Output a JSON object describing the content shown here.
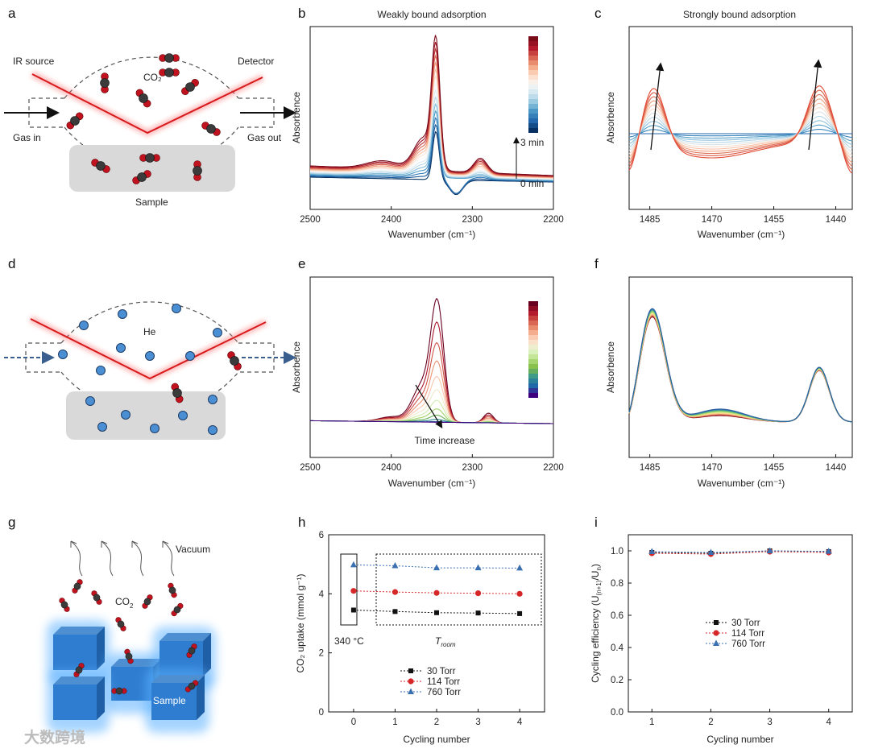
{
  "figure": {
    "panel_labels": [
      "a",
      "b",
      "c",
      "d",
      "e",
      "f",
      "g",
      "h",
      "i"
    ],
    "watermark": "大数跨境"
  },
  "panel_a": {
    "ir_source": "IR source",
    "detector": "Detector",
    "co2_label": "CO₂",
    "gas_in": "Gas in",
    "gas_out": "Gas out",
    "sample": "Sample"
  },
  "panel_d": {
    "he_label": "He"
  },
  "panel_g": {
    "vacuum": "Vacuum",
    "co2_label": "CO",
    "co2_sub": "2",
    "sample": "Sample"
  },
  "chart_data": [
    {
      "id": "b",
      "type": "line",
      "title": "Weakly bound adsorption",
      "xlabel": "Wavenumber (cm⁻¹)",
      "ylabel": "Absorbence",
      "xlim": [
        2500,
        2200
      ],
      "xticks": [
        "2500",
        "2400",
        "2300",
        "2200"
      ],
      "colorbar": {
        "top": "3 min",
        "bottom": "0 min",
        "colors": [
          "#7a0c1a",
          "#b2182b",
          "#d6604d",
          "#f4a582",
          "#fddbc7",
          "#f7f7f7",
          "#d1e5f0",
          "#92c5de",
          "#4393c3",
          "#2166ac",
          "#053061"
        ]
      },
      "series_count": 15
    },
    {
      "id": "c",
      "type": "line",
      "title": "Strongly bound adsorption",
      "xlabel": "Wavenumber (cm⁻¹)",
      "ylabel": "Absorbence",
      "xlim": [
        1490,
        1436
      ],
      "xticks": [
        "1485",
        "1470",
        "1455",
        "1440"
      ],
      "series_count": 12
    },
    {
      "id": "e",
      "type": "line",
      "xlabel": "Wavenumber (cm⁻¹)",
      "ylabel": "Absorbence",
      "xlim": [
        2500,
        2200
      ],
      "xticks": [
        "2500",
        "2400",
        "2300",
        "2200"
      ],
      "annotation": "Time increase",
      "colorbar": {
        "colors": [
          "#67001f",
          "#b2182b",
          "#d6604d",
          "#f4a582",
          "#fddbc7",
          "#e6f5d0",
          "#b8e186",
          "#7fbc41",
          "#35978f",
          "#2166ac",
          "#3f007d"
        ]
      }
    },
    {
      "id": "f",
      "type": "line",
      "xlabel": "Wavenumber (cm⁻¹)",
      "ylabel": "Absorbence",
      "xlim": [
        1490,
        1436
      ],
      "xticks": [
        "1485",
        "1470",
        "1455",
        "1440"
      ]
    },
    {
      "id": "h",
      "type": "scatter",
      "xlabel": "Cycling number",
      "ylabel": "CO₂ uptake (mmol g⁻¹)",
      "xlim": [
        -0.6,
        4.6
      ],
      "ylim": [
        0,
        6
      ],
      "xticks": [
        0,
        1,
        2,
        3,
        4
      ],
      "yticks": [
        0,
        2,
        4,
        6
      ],
      "annotations": {
        "left": "340 °C",
        "right_base": "T",
        "right_sub": "room"
      },
      "x": [
        0,
        1,
        2,
        3,
        4
      ],
      "series": [
        {
          "name": "30   Torr",
          "values": [
            3.45,
            3.4,
            3.36,
            3.35,
            3.33
          ],
          "color": "#111111",
          "marker": "square"
        },
        {
          "name": "114 Torr",
          "values": [
            4.1,
            4.06,
            4.03,
            4.02,
            4.0
          ],
          "color": "#d62728",
          "marker": "circle"
        },
        {
          "name": "760 Torr",
          "values": [
            4.98,
            4.95,
            4.88,
            4.88,
            4.87
          ],
          "color": "#3a6fb0",
          "marker": "triangle"
        }
      ]
    },
    {
      "id": "i",
      "type": "scatter",
      "xlabel": "Cycling number",
      "ylabel": "Cycling efficiency (U(n+1)/Un)",
      "ylabel_main": "Cycling efficiency (U",
      "ylabel_sub1": "(n+1)",
      "ylabel_mid": "/U",
      "ylabel_sub2": "n",
      "ylabel_end": ")",
      "xlim": [
        0.6,
        4.4
      ],
      "ylim": [
        0,
        1.1
      ],
      "xticks": [
        1,
        2,
        3,
        4
      ],
      "yticks": [
        "0.0",
        "0.2",
        "0.4",
        "0.6",
        "0.8",
        "1.0"
      ],
      "x": [
        1,
        2,
        3,
        4
      ],
      "series": [
        {
          "name": "30   Torr",
          "values": [
            0.99,
            0.985,
            1.0,
            0.995
          ],
          "color": "#111111",
          "marker": "square"
        },
        {
          "name": "114 Torr",
          "values": [
            0.985,
            0.98,
            0.995,
            0.99
          ],
          "color": "#d62728",
          "marker": "circle"
        },
        {
          "name": "760 Torr",
          "values": [
            0.995,
            0.99,
            1.0,
            0.997
          ],
          "color": "#3a6fb0",
          "marker": "triangle"
        }
      ]
    }
  ]
}
